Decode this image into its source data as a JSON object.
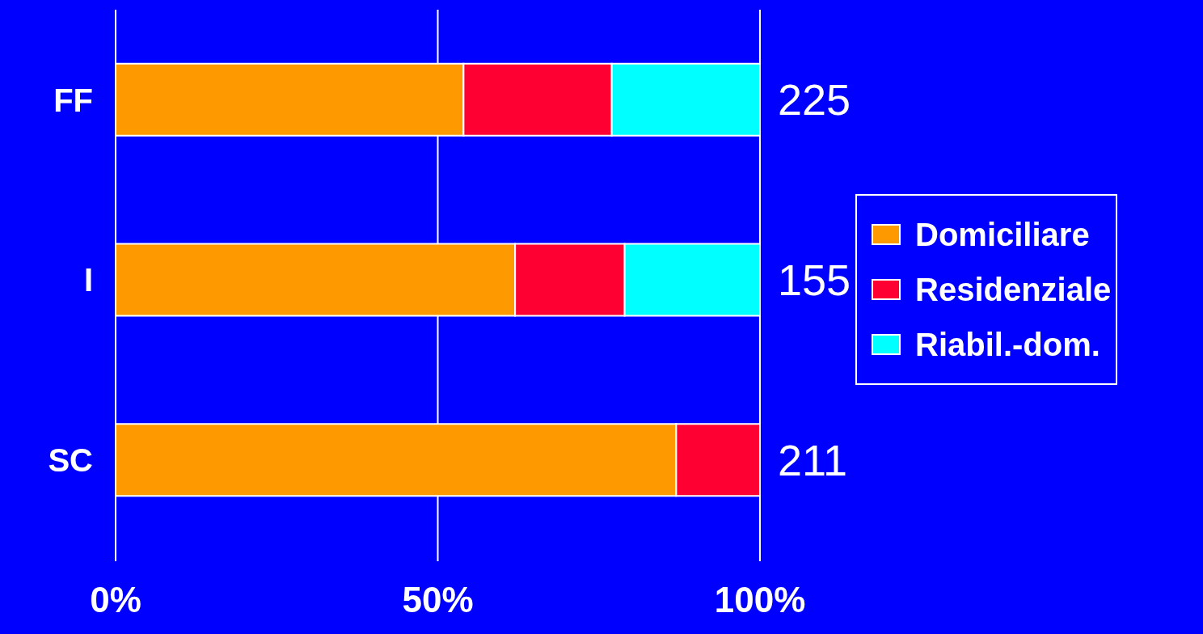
{
  "chart_data": {
    "type": "bar",
    "orientation": "horizontal",
    "stacked": true,
    "categories": [
      "FF",
      "I",
      "SC"
    ],
    "series": [
      {
        "name": "Domiciliare",
        "color": "#ff9900",
        "values": [
          54,
          62,
          87
        ]
      },
      {
        "name": "Residenziale",
        "color": "#ff0033",
        "values": [
          23,
          17,
          13
        ]
      },
      {
        "name": "Riabil.-dom.",
        "color": "#00ffff",
        "values": [
          23,
          21,
          0
        ]
      }
    ],
    "xlim": [
      0,
      100
    ],
    "xticks": [
      {
        "value": 0,
        "label": "0%"
      },
      {
        "value": 50,
        "label": "50%"
      },
      {
        "value": 100,
        "label": "100%"
      }
    ],
    "annotations": [
      "225",
      "155",
      "211"
    ],
    "grid": "x",
    "legend": "right"
  }
}
